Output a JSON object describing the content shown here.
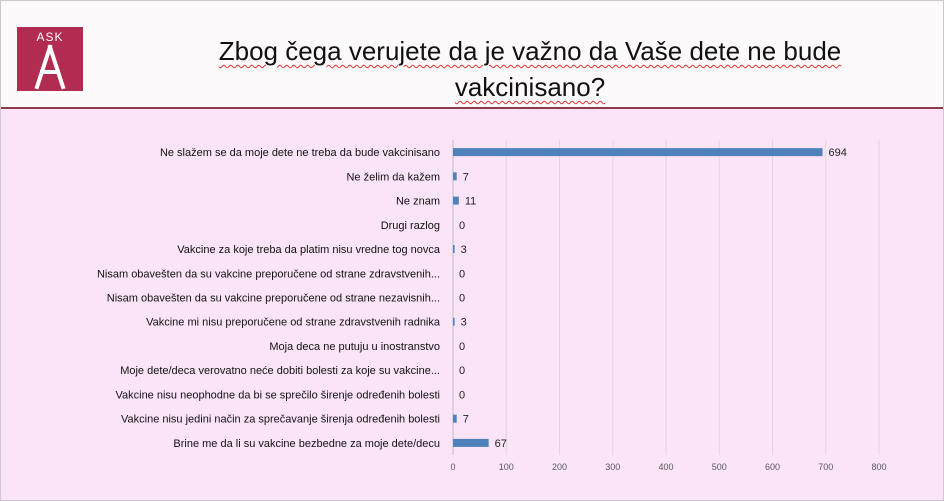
{
  "logo": {
    "text": "ASK"
  },
  "title": "Zbog čega verujete da je važno da Vaše dete ne bude vakcinisano?",
  "colors": {
    "bar": "#4f81bd",
    "header_rule": "#8e3b4c",
    "logo_bg": "#b22b50",
    "background": "#fbe4f7"
  },
  "chart_data": {
    "type": "bar",
    "orientation": "horizontal",
    "categories": [
      "Ne slažem se da moje dete ne treba da bude vakcinisano",
      "Ne želim da kažem",
      "Ne znam",
      "Drugi razlog",
      "Vakcine za koje treba da platim nisu vredne tog novca",
      "Nisam obavešten da su vakcine preporučene od strane zdravstvenih...",
      "Nisam obavešten da su vakcine preporučene od strane nezavisnih...",
      "Vakcine mi nisu preporučene od strane zdravstvenih radnika",
      "Moja deca ne putuju u inostranstvo",
      "Moje dete/deca verovatno neće dobiti bolesti za koje su vakcine...",
      "Vakcine nisu neophodne da bi se sprečilo širenje određenih bolesti",
      "Vakcine nisu jedini način za sprečavanje širenja određenih bolesti",
      "Brine me da li su vakcine bezbedne za moje dete/decu"
    ],
    "values": [
      694,
      7,
      11,
      0,
      3,
      0,
      0,
      3,
      0,
      0,
      0,
      7,
      67
    ],
    "xlim": [
      0,
      800
    ],
    "xticks": [
      0,
      100,
      200,
      300,
      400,
      500,
      600,
      700,
      800
    ],
    "grid": true,
    "data_labels": true
  }
}
